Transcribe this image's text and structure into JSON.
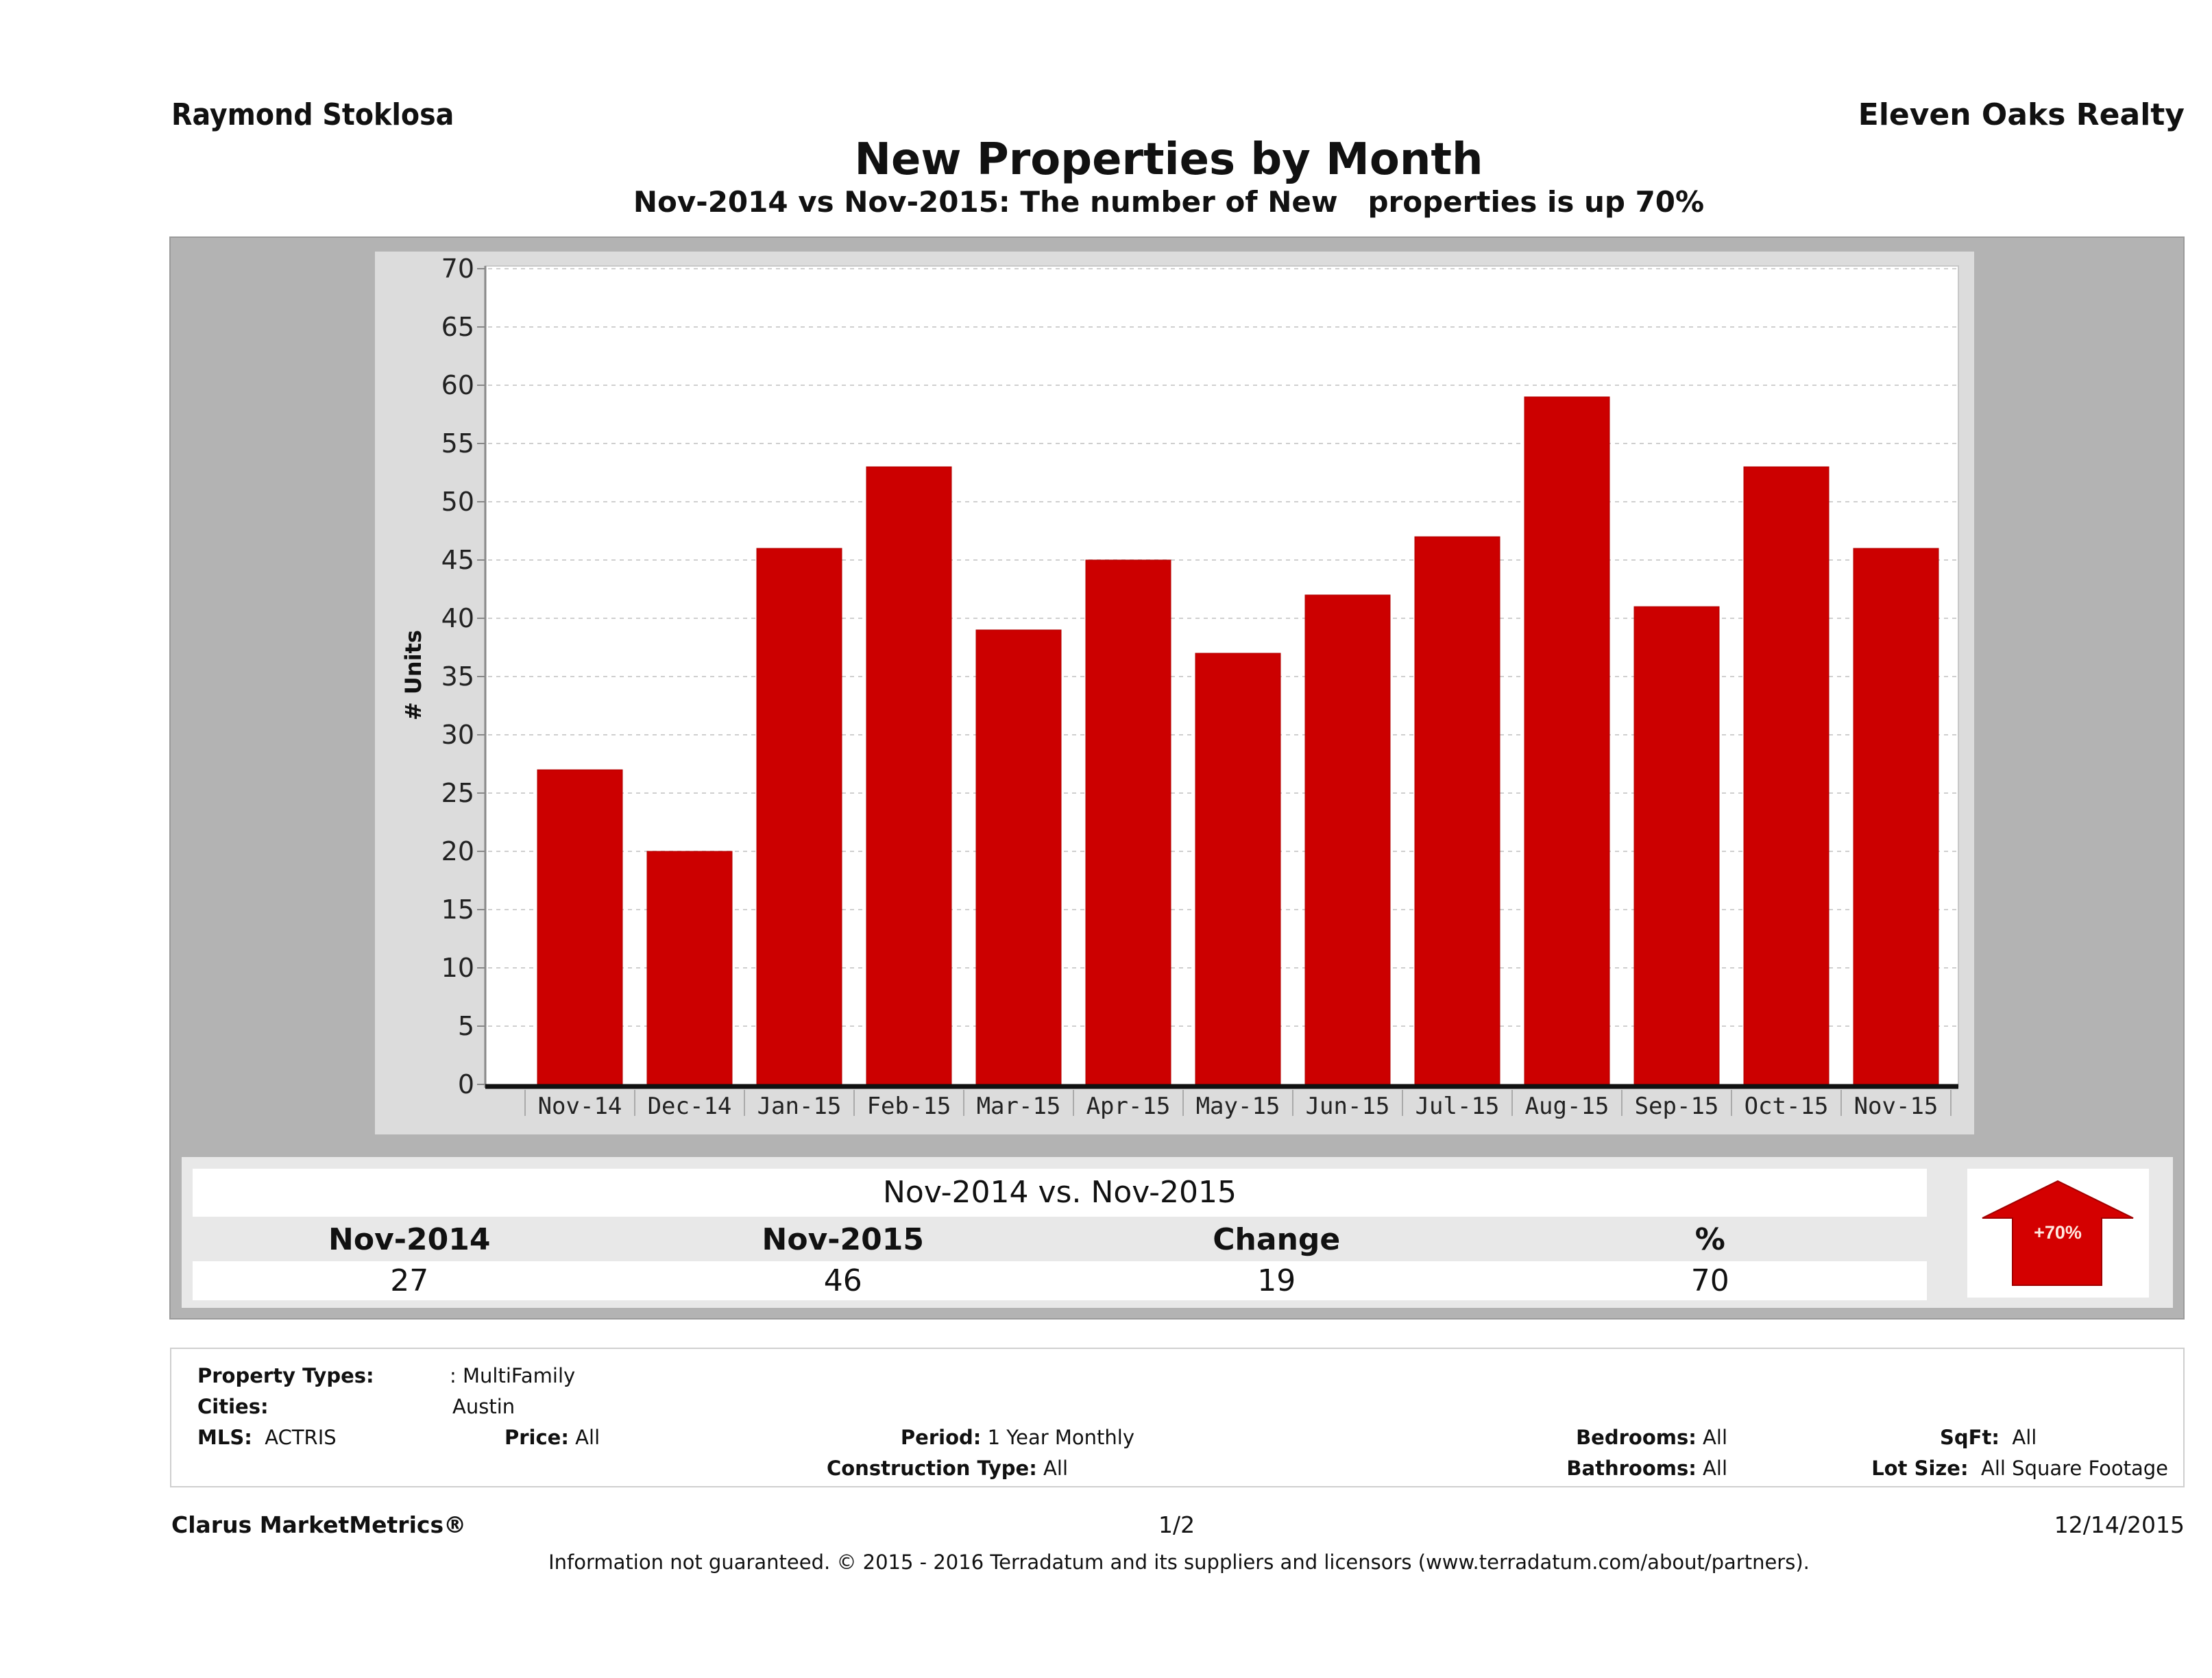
{
  "header": {
    "agent_name": "Raymond Stoklosa",
    "brokerage": "Eleven Oaks Realty",
    "title": "New Properties by Month",
    "subtitle": "Nov-2014 vs Nov-2015: The number of New   properties is up 70%"
  },
  "colors": {
    "bar": "#cc0000",
    "frame": "#b3b3b3",
    "panel": "#dcdcdc",
    "arrow": "#d40000"
  },
  "chart_data": {
    "type": "bar",
    "title": "New Properties by Month",
    "xlabel": "",
    "ylabel": "# Units",
    "ylim": [
      0,
      70
    ],
    "yticks": [
      "0",
      "5",
      "10",
      "15",
      "20",
      "25",
      "30",
      "35",
      "40",
      "45",
      "50",
      "55",
      "60",
      "65",
      "70"
    ],
    "grid": true,
    "categories": [
      "Nov-14",
      "Dec-14",
      "Jan-15",
      "Feb-15",
      "Mar-15",
      "Apr-15",
      "May-15",
      "Jun-15",
      "Jul-15",
      "Aug-15",
      "Sep-15",
      "Oct-15",
      "Nov-15"
    ],
    "values": [
      27,
      20,
      46,
      53,
      39,
      45,
      37,
      42,
      47,
      59,
      41,
      53,
      46
    ]
  },
  "summary": {
    "title": "Nov-2014 vs. Nov-2015",
    "headers": [
      "Nov-2014",
      "Nov-2015",
      "Change",
      "%"
    ],
    "values": [
      "27",
      "46",
      "19",
      "70"
    ],
    "badge": {
      "icon": "up-arrow-icon",
      "label": "+70%"
    }
  },
  "filters": {
    "property_types_label": "Property Types:",
    "property_types_value": ": MultiFamily",
    "cities_label": "Cities:",
    "cities_value": "Austin",
    "mls_label": "MLS:",
    "mls_value": "ACTRIS",
    "price_label": "Price:",
    "price_value": "All",
    "period_label": "Period:",
    "period_value": "1 Year Monthly",
    "construction_label": "Construction Type:",
    "construction_value": "All",
    "bedrooms_label": "Bedrooms:",
    "bedrooms_value": "All",
    "bathrooms_label": "Bathrooms:",
    "bathrooms_value": "All",
    "sqft_label": "SqFt:",
    "sqft_value": "All",
    "lotsize_label": "Lot Size:",
    "lotsize_value": "All Square Footage"
  },
  "footer": {
    "product": "Clarus MarketMetrics®",
    "page": "1/2",
    "date": "12/14/2015",
    "disclaimer": "Information not guaranteed. © 2015 - 2016 Terradatum and its suppliers and licensors (www.terradatum.com/about/partners)."
  }
}
